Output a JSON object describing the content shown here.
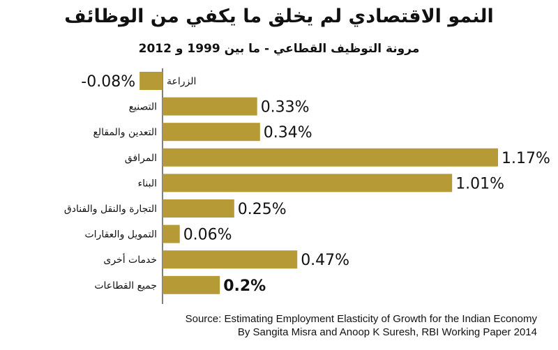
{
  "chart_data": {
    "type": "bar",
    "orientation": "horizontal",
    "title": "النمو الاقتصادي لم يخلق ما يكفي من الوظائف",
    "subtitle": "مرونة التوظيف القطاعي - ما بين 1999 و 2012",
    "categories": [
      "الزراعة",
      "التصنيع",
      "التعدين والمقالع",
      "المرافق",
      "البناء",
      "التجارة والنقل والفنادق",
      "التمويل والعقارات",
      "خدمات أخرى",
      "جميع القطاعات"
    ],
    "values": [
      -0.08,
      0.33,
      0.34,
      1.17,
      1.01,
      0.25,
      0.06,
      0.47,
      0.2
    ],
    "value_labels": [
      "-0.08%",
      "0.33%",
      "0.34%",
      "1.17%",
      "1.01%",
      "0.25%",
      "0.06%",
      "0.47%",
      "0.2%"
    ],
    "bold_value_index": 8,
    "bar_color": "#b59a35",
    "axis_color": "#555555",
    "xlim": [
      -0.08,
      1.17
    ],
    "grid": false,
    "legend": "none"
  },
  "source": {
    "line1": "Source: Estimating Employment Elasticity of Growth for the Indian Economy",
    "line2": "By Sangita Misra and Anoop K Suresh, RBI Working Paper 2014"
  }
}
